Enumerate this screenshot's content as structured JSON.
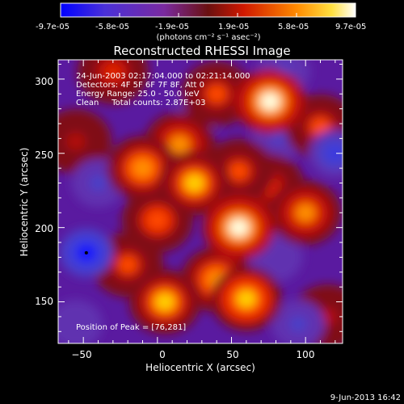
{
  "colorbar": {
    "ticks": [
      "-9.7e-05",
      "-5.8e-05",
      "-1.9e-05",
      "1.9e-05",
      "5.8e-05",
      "9.7e-05"
    ],
    "units_label": "(photons cm⁻² s⁻¹ asec⁻²)",
    "range": [
      -9.7e-05,
      9.7e-05
    ],
    "colors": [
      "#1010ff",
      "#6a40c0",
      "#a01808",
      "#ff2000",
      "#ffa000",
      "#ffffff"
    ]
  },
  "chart_data": {
    "type": "heatmap",
    "title": "Reconstructed RHESSI Image",
    "xlabel": "Heliocentric X (arcsec)",
    "ylabel": "Heliocentric Y (arcsec)",
    "xlim": [
      -67,
      125
    ],
    "ylim": [
      122,
      313
    ],
    "x_ticks": [
      -50,
      0,
      50,
      100
    ],
    "y_ticks": [
      150,
      200,
      250,
      300
    ],
    "x_tick_labels": [
      "−50",
      "0",
      "50",
      "100"
    ],
    "y_tick_labels": [
      "150",
      "200",
      "250",
      "300"
    ],
    "info_lines": [
      "24-Jun-2003 02:17:04.000 to 02:21:14.000",
      "Detectors: 4F 5F 6F 7F 8F, Att 0",
      "Energy Range: 25.0 - 50.0 keV",
      "Clean     Total counts: 2.87E+03"
    ],
    "peak_label": "Position of Peak = [76,281]",
    "peak_position": [
      76,
      281
    ],
    "blobs": [
      {
        "x": 76,
        "y": 285,
        "level": 0.95
      },
      {
        "x": 40,
        "y": 290,
        "level": 0.6
      },
      {
        "x": -30,
        "y": 305,
        "level": 0.55
      },
      {
        "x": 110,
        "y": 268,
        "level": 0.6
      },
      {
        "x": 15,
        "y": 256,
        "level": 0.7
      },
      {
        "x": -10,
        "y": 240,
        "level": 0.75
      },
      {
        "x": 25,
        "y": 230,
        "level": 0.8
      },
      {
        "x": 55,
        "y": 238,
        "level": 0.6
      },
      {
        "x": 0,
        "y": 205,
        "level": 0.65
      },
      {
        "x": 55,
        "y": 200,
        "level": 0.9
      },
      {
        "x": 100,
        "y": 210,
        "level": 0.7
      },
      {
        "x": -20,
        "y": 175,
        "level": 0.6
      },
      {
        "x": 40,
        "y": 165,
        "level": 0.75
      },
      {
        "x": 60,
        "y": 152,
        "level": 0.85
      },
      {
        "x": 5,
        "y": 150,
        "level": 0.8
      },
      {
        "x": -55,
        "y": 258,
        "level": 0.45
      },
      {
        "x": 75,
        "y": 228,
        "level": 0.55
      },
      {
        "x": 115,
        "y": 140,
        "level": 0.4
      },
      {
        "x": -48,
        "y": 183,
        "level": -0.95
      },
      {
        "x": 120,
        "y": 250,
        "level": -0.6
      },
      {
        "x": 85,
        "y": 305,
        "level": -0.5
      },
      {
        "x": 82,
        "y": 262,
        "level": -0.45
      },
      {
        "x": -40,
        "y": 230,
        "level": -0.45
      },
      {
        "x": 30,
        "y": 280,
        "level": -0.35
      },
      {
        "x": -55,
        "y": 135,
        "level": -0.35
      },
      {
        "x": 80,
        "y": 180,
        "level": -0.3
      },
      {
        "x": 95,
        "y": 135,
        "level": -0.4
      }
    ]
  },
  "footer": {
    "timestamp": "9-Jun-2013 16:42"
  }
}
